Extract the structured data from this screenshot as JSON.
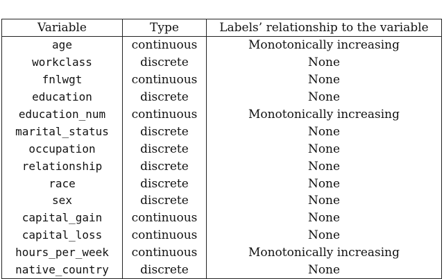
{
  "table": {
    "headers": [
      "Variable",
      "Type",
      "Labels’ relationship to the variable"
    ],
    "rows": [
      [
        "age",
        "continuous",
        "Monotonically increasing"
      ],
      [
        "workclass",
        "discrete",
        "None"
      ],
      [
        "fnlwgt",
        "continuous",
        "None"
      ],
      [
        "education",
        "discrete",
        "None"
      ],
      [
        "education_num",
        "continuous",
        "Monotonically increasing"
      ],
      [
        "marital_status",
        "discrete",
        "None"
      ],
      [
        "occupation",
        "discrete",
        "None"
      ],
      [
        "relationship",
        "discrete",
        "None"
      ],
      [
        "race",
        "discrete",
        "None"
      ],
      [
        "sex",
        "discrete",
        "None"
      ],
      [
        "capital_gain",
        "continuous",
        "None"
      ],
      [
        "capital_loss",
        "continuous",
        "None"
      ],
      [
        "hours_per_week",
        "continuous",
        "Monotonically increasing"
      ],
      [
        "native_country",
        "discrete",
        "None"
      ]
    ]
  }
}
